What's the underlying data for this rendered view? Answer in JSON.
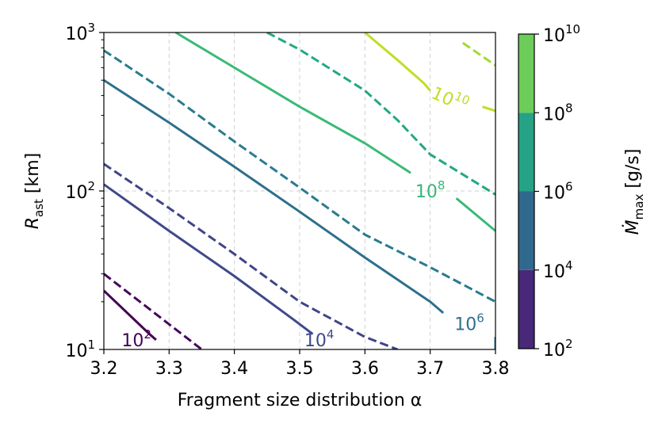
{
  "chart_data": {
    "type": "line",
    "title": "",
    "xlabel": "Fragment size distribution α",
    "ylabel": {
      "main": "R",
      "sub": "ast",
      "rest": " [km]"
    },
    "xlim": [
      3.2,
      3.8
    ],
    "ylim": [
      10,
      1000
    ],
    "yscale": "log",
    "grid": true,
    "x_ticks": [
      "3.2",
      "3.3",
      "3.4",
      "3.5",
      "3.6",
      "3.7",
      "3.8"
    ],
    "y_ticks": [
      {
        "value": 10,
        "label": "10",
        "exp": "1"
      },
      {
        "value": 100,
        "label": "10",
        "exp": "2"
      },
      {
        "value": 1000,
        "label": "10",
        "exp": "3"
      }
    ],
    "series": [
      {
        "level": 100,
        "style": "solid",
        "color": "#440154",
        "points": [
          [
            3.2,
            23.5
          ],
          [
            3.27,
            12.5
          ],
          [
            3.28,
            11.5
          ]
        ]
      },
      {
        "level": 316,
        "style": "dashed",
        "color": "#45085b",
        "points": [
          [
            3.2,
            30
          ],
          [
            3.35,
            10
          ]
        ]
      },
      {
        "level": 10000,
        "style": "solid",
        "color": "#3f4a8a",
        "points": [
          [
            3.2,
            110
          ],
          [
            3.3,
            56
          ],
          [
            3.4,
            29
          ],
          [
            3.49,
            15.5
          ],
          [
            3.52,
            12.5
          ]
        ]
      },
      {
        "level": 31623,
        "style": "dashed",
        "color": "#414487",
        "points": [
          [
            3.2,
            148
          ],
          [
            3.3,
            78
          ],
          [
            3.4,
            40
          ],
          [
            3.5,
            20
          ],
          [
            3.6,
            12
          ],
          [
            3.65,
            10
          ]
        ]
      },
      {
        "level": 1000000,
        "style": "solid",
        "color": "#2d708e",
        "points": [
          [
            3.2,
            500
          ],
          [
            3.3,
            270
          ],
          [
            3.4,
            142
          ],
          [
            3.5,
            74
          ],
          [
            3.6,
            38
          ],
          [
            3.7,
            20
          ],
          [
            3.72,
            17
          ]
        ]
      },
      {
        "level": 3162278,
        "style": "dashed",
        "color": "#297b8e",
        "points": [
          [
            3.2,
            770
          ],
          [
            3.3,
            410
          ],
          [
            3.4,
            205
          ],
          [
            3.5,
            105
          ],
          [
            3.6,
            53
          ],
          [
            3.7,
            33
          ],
          [
            3.8,
            20
          ]
        ]
      },
      {
        "level": 100000000,
        "style": "solid",
        "color": "#3aba76",
        "points": [
          [
            3.31,
            1000
          ],
          [
            3.4,
            600
          ],
          [
            3.5,
            340
          ],
          [
            3.6,
            200
          ],
          [
            3.67,
            130
          ]
        ]
      },
      {
        "level": 316227766,
        "style": "dashed",
        "color": "#22a884",
        "points": [
          [
            3.45,
            1000
          ],
          [
            3.5,
            780
          ],
          [
            3.6,
            430
          ],
          [
            3.65,
            280
          ],
          [
            3.7,
            170
          ],
          [
            3.8,
            95
          ]
        ]
      },
      {
        "level": 10000000000,
        "style": "solid",
        "color": "#bddf26",
        "points": [
          [
            3.6,
            1000
          ],
          [
            3.65,
            670
          ],
          [
            3.69,
            480
          ],
          [
            3.7,
            430
          ]
        ]
      },
      {
        "level": 31622776601,
        "style": "dashed",
        "color": "#a2da37",
        "points": [
          [
            3.75,
            860
          ],
          [
            3.8,
            620
          ]
        ]
      }
    ],
    "extra_segments": [
      {
        "color": "#2d708e",
        "style": "solid",
        "points": [
          [
            3.8,
            12
          ],
          [
            3.8,
            10
          ]
        ]
      },
      {
        "color": "#3aba76",
        "style": "solid",
        "points": [
          [
            3.74,
            90
          ],
          [
            3.8,
            56
          ]
        ]
      },
      {
        "color": "#bddf26",
        "style": "solid",
        "points": [
          [
            3.78,
            340
          ],
          [
            3.8,
            320
          ]
        ]
      }
    ],
    "contour_labels": [
      {
        "text": "10",
        "exp": "2",
        "x": 3.25,
        "y": 11.5,
        "color": "#440154"
      },
      {
        "text": "10",
        "exp": "4",
        "x": 3.53,
        "y": 11.5,
        "color": "#3f4a8a"
      },
      {
        "text": "10",
        "exp": "6",
        "x": 3.76,
        "y": 14.5,
        "color": "#2d708e"
      },
      {
        "text": "10",
        "exp": "8",
        "x": 3.7,
        "y": 100,
        "color": "#35b779"
      },
      {
        "text": "10",
        "exp": "10",
        "x": 3.73,
        "y": 380,
        "color": "#bddf26"
      }
    ],
    "colorbar": {
      "label": {
        "main": "Ṁ",
        "sub": "max",
        "rest": " [g/s]"
      },
      "levels": [
        {
          "label": "10",
          "exp": "2"
        },
        {
          "label": "10",
          "exp": "4"
        },
        {
          "label": "10",
          "exp": "6"
        },
        {
          "label": "10",
          "exp": "8"
        },
        {
          "label": "10",
          "exp": "10"
        }
      ],
      "colors": [
        "#482878",
        "#31688e",
        "#26a386",
        "#6ccd5a"
      ]
    }
  }
}
